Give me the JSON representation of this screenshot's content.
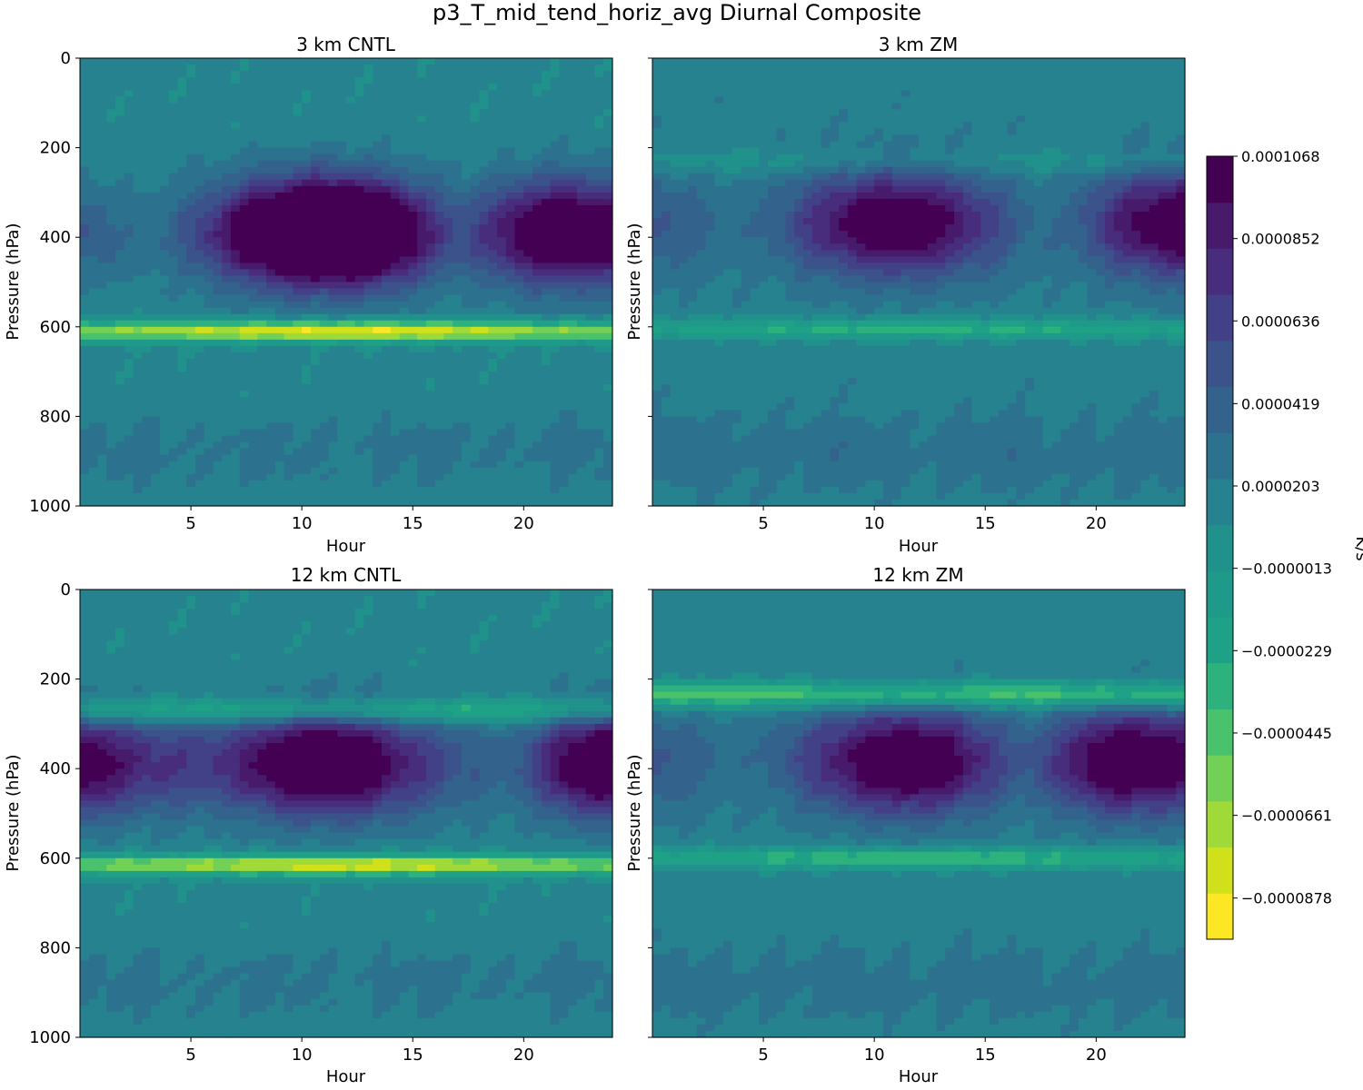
{
  "title": "p3_T_mid_tend_horiz_avg Diurnal Composite",
  "colorbar": {
    "label": "K/s",
    "tick_labels": [
      "0.0001068",
      "0.0000852",
      "0.0000636",
      "0.0000419",
      "0.0000203",
      "−0.0000013",
      "−0.0000229",
      "−0.0000445",
      "−0.0000661",
      "−0.0000878"
    ],
    "levels": [
      -9.86e-05,
      -8.78e-05,
      -7.7e-05,
      -6.61e-05,
      -5.53e-05,
      -4.45e-05,
      -3.37e-05,
      -2.29e-05,
      -1.21e-05,
      -1.3e-06,
      9.5e-06,
      2.03e-05,
      3.11e-05,
      4.19e-05,
      5.28e-05,
      6.36e-05,
      7.44e-05,
      8.52e-05,
      9.6e-05,
      0.0001068
    ],
    "colors": [
      "#fde725",
      "#d0e11c",
      "#a0da39",
      "#73d056",
      "#4ac16d",
      "#2db27d",
      "#1fa187",
      "#1f9a8a",
      "#21918c",
      "#26828e",
      "#2c728e",
      "#33638d",
      "#3b528b",
      "#424086",
      "#472d7b",
      "#481a6c",
      "#440154"
    ]
  },
  "chart_data": [
    {
      "type": "heatmap",
      "title": "3 km CNTL",
      "xlabel": "Hour",
      "ylabel": "Pressure (hPa)",
      "xlim": [
        0,
        24
      ],
      "ylim": [
        1000,
        0
      ],
      "xticks": [
        5,
        10,
        15,
        20
      ],
      "yticks": [
        0,
        200,
        400,
        600,
        800,
        1000
      ],
      "xtick_labels": [
        "5",
        "10",
        "15",
        "20"
      ],
      "ytick_labels": [
        "0",
        "200",
        "400",
        "600",
        "800",
        "1000"
      ],
      "features": {
        "warm_band_pressure": 610,
        "warm_band_strength": -9.5e-05,
        "upper_pressure": 390,
        "upper_strength": 0.0001,
        "upper_max_hours": [
          10,
          12.5,
          22
        ],
        "upper_min_hours": [
          3,
          17
        ],
        "secondary_upper_pressure": 0,
        "secondary_upper_strength": 0,
        "background": 2e-06
      }
    },
    {
      "type": "heatmap",
      "title": "3 km ZM",
      "xlabel": "Hour",
      "ylabel": "Pressure (hPa)",
      "xlim": [
        0,
        24
      ],
      "ylim": [
        1000,
        0
      ],
      "xticks": [
        5,
        10,
        15,
        20
      ],
      "yticks": [
        0,
        200,
        400,
        600,
        800,
        1000
      ],
      "xtick_labels": [
        "5",
        "10",
        "15",
        "20"
      ],
      "ytick_labels": [
        "0",
        "200",
        "400",
        "600",
        "800",
        "1000"
      ],
      "features": {
        "warm_band_pressure": 605,
        "warm_band_strength": -4.5e-05,
        "upper_pressure": 370,
        "upper_strength": 8.5e-05,
        "upper_max_hours": [
          11,
          24
        ],
        "upper_min_hours": [
          4,
          18
        ],
        "secondary_upper_pressure": 230,
        "secondary_upper_strength": -2e-05,
        "background": 5e-06
      }
    },
    {
      "type": "heatmap",
      "title": "12 km CNTL",
      "xlabel": "Hour",
      "ylabel": "Pressure (hPa)",
      "xlim": [
        0,
        24
      ],
      "ylim": [
        1000,
        0
      ],
      "xticks": [
        5,
        10,
        15,
        20
      ],
      "yticks": [
        0,
        200,
        400,
        600,
        800,
        1000
      ],
      "xtick_labels": [
        "5",
        "10",
        "15",
        "20"
      ],
      "ytick_labels": [
        "0",
        "200",
        "400",
        "600",
        "800",
        "1000"
      ],
      "features": {
        "warm_band_pressure": 615,
        "warm_band_strength": -9e-05,
        "upper_pressure": 390,
        "upper_strength": 0.0001,
        "upper_max_hours": [
          0,
          11,
          24
        ],
        "upper_min_hours": [
          1.5,
          19.5
        ],
        "secondary_upper_pressure": 270,
        "secondary_upper_strength": -6e-05,
        "background": 2e-06
      }
    },
    {
      "type": "heatmap",
      "title": "12 km ZM",
      "xlabel": "Hour",
      "ylabel": "Pressure (hPa)",
      "xlim": [
        0,
        24
      ],
      "ylim": [
        1000,
        0
      ],
      "xticks": [
        5,
        10,
        15,
        20
      ],
      "yticks": [
        0,
        200,
        400,
        600,
        800,
        1000
      ],
      "xtick_labels": [
        "5",
        "10",
        "15",
        "20"
      ],
      "ytick_labels": [
        "0",
        "200",
        "400",
        "600",
        "800",
        "1000"
      ],
      "features": {
        "warm_band_pressure": 600,
        "warm_band_strength": -5e-05,
        "upper_pressure": 385,
        "upper_strength": 9e-05,
        "upper_max_hours": [
          11.5,
          21.5
        ],
        "upper_min_hours": [
          4,
          17
        ],
        "secondary_upper_pressure": 235,
        "secondary_upper_strength": -8e-05,
        "background": 4e-06
      }
    }
  ]
}
